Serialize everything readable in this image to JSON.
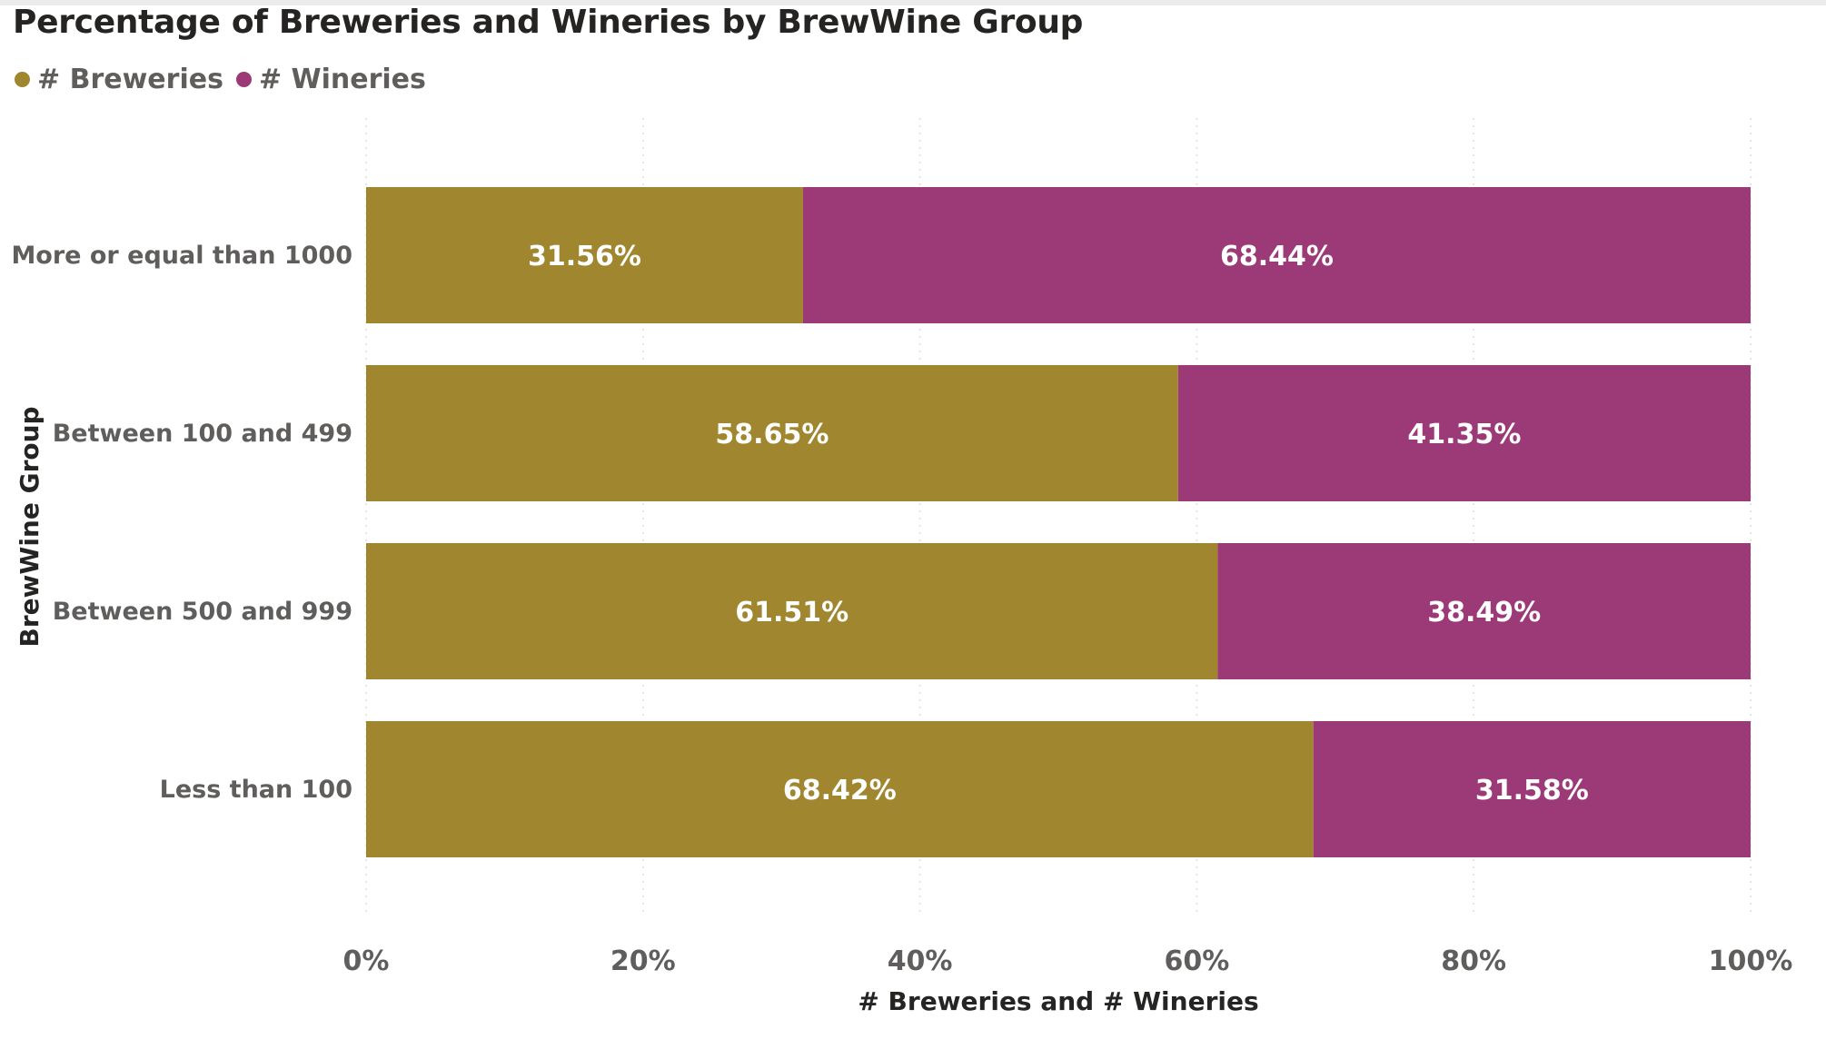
{
  "chart_data": {
    "type": "bar",
    "orientation": "horizontal",
    "stacked": "100%",
    "title": "Percentage of Breweries and Wineries by BrewWine Group",
    "xlabel": "# Breweries and # Wineries",
    "ylabel": "BrewWine Group",
    "categories": [
      "More or equal than 1000",
      "Between 100 and 499",
      "Between 500 and 999",
      "Less than 100"
    ],
    "series": [
      {
        "name": "# Breweries",
        "color": "#a0862e",
        "values": [
          31.56,
          58.65,
          61.51,
          68.42
        ],
        "labels": [
          "31.56%",
          "58.65%",
          "61.51%",
          "68.42%"
        ]
      },
      {
        "name": "# Wineries",
        "color": "#9c3a78",
        "values": [
          68.44,
          41.35,
          38.49,
          31.58
        ],
        "labels": [
          "68.44%",
          "41.35%",
          "38.49%",
          "31.58%"
        ]
      }
    ],
    "xlim": [
      0,
      100
    ],
    "xticks": [
      0,
      20,
      40,
      60,
      80,
      100
    ],
    "xtick_labels": [
      "0%",
      "20%",
      "40%",
      "60%",
      "80%",
      "100%"
    ],
    "grid": "vertical dotted",
    "legend_position": "top-left"
  }
}
